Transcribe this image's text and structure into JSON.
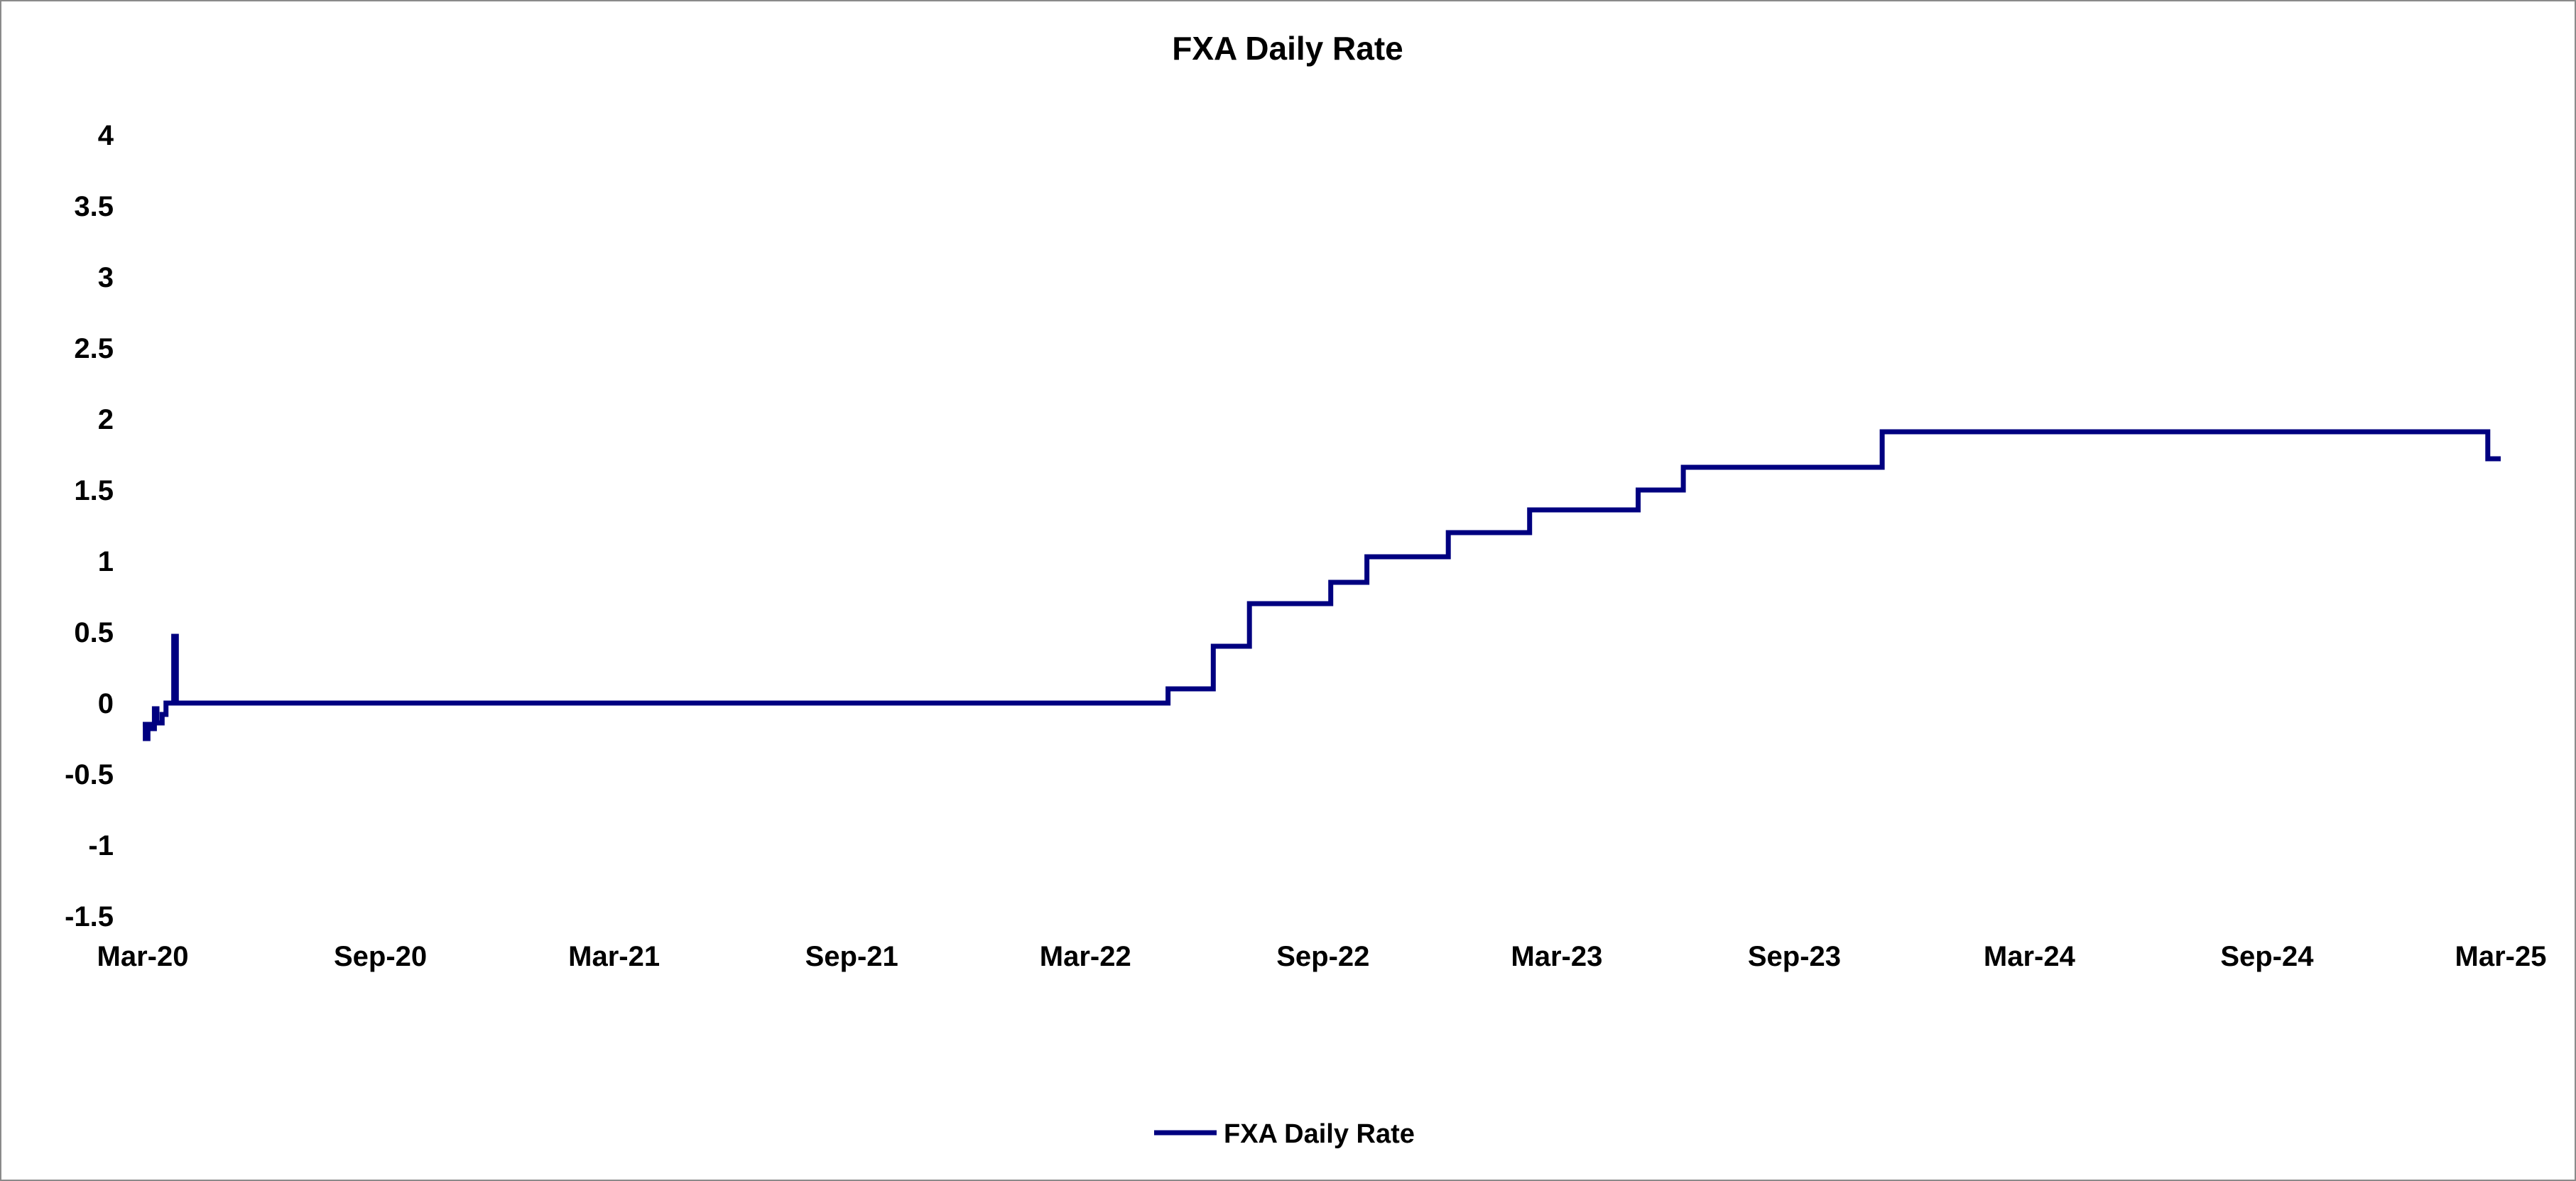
{
  "chart_data": {
    "type": "line",
    "title": "FXA Daily Rate",
    "xlabel": "",
    "ylabel": "",
    "ylim": [
      -1.5,
      4
    ],
    "y_ticks": [
      "4",
      "3.5",
      "3",
      "2.5",
      "2",
      "1.5",
      "1",
      "0.5",
      "0",
      "-0.5",
      "-1",
      "-1.5"
    ],
    "y_tick_values": [
      4,
      3.5,
      3,
      2.5,
      2,
      1.5,
      1,
      0.5,
      0,
      -0.5,
      -1,
      -1.5
    ],
    "xlim": [
      "2020-03-01",
      "2025-03-01"
    ],
    "x_ticks": [
      {
        "label": "Mar-20",
        "date": "2020-03-01"
      },
      {
        "label": "Sep-20",
        "date": "2020-09-01"
      },
      {
        "label": "Mar-21",
        "date": "2021-03-01"
      },
      {
        "label": "Sep-21",
        "date": "2021-09-01"
      },
      {
        "label": "Mar-22",
        "date": "2022-03-01"
      },
      {
        "label": "Sep-22",
        "date": "2022-09-01"
      },
      {
        "label": "Mar-23",
        "date": "2023-03-01"
      },
      {
        "label": "Sep-23",
        "date": "2023-09-01"
      },
      {
        "label": "Mar-24",
        "date": "2024-03-01"
      },
      {
        "label": "Sep-24",
        "date": "2024-09-01"
      },
      {
        "label": "Mar-25",
        "date": "2025-03-01"
      }
    ],
    "grid": false,
    "legend_position": "bottom-center",
    "series": [
      {
        "name": "FXA Daily Rate",
        "color": "#000080",
        "step": true,
        "points": [
          [
            "2020-03-01",
            -0.15
          ],
          [
            "2020-03-03",
            -0.25
          ],
          [
            "2020-03-05",
            -0.15
          ],
          [
            "2020-03-08",
            -0.18
          ],
          [
            "2020-03-10",
            -0.04
          ],
          [
            "2020-03-12",
            -0.14
          ],
          [
            "2020-03-16",
            -0.08
          ],
          [
            "2020-03-19",
            0.0
          ],
          [
            "2020-03-23",
            0.0
          ],
          [
            "2020-03-25",
            0.47
          ],
          [
            "2020-03-27",
            0.0
          ],
          [
            "2022-05-04",
            0.1
          ],
          [
            "2022-06-08",
            0.4
          ],
          [
            "2022-07-06",
            0.7
          ],
          [
            "2022-09-07",
            0.85
          ],
          [
            "2022-10-05",
            1.03
          ],
          [
            "2022-12-07",
            1.2
          ],
          [
            "2023-02-08",
            1.36
          ],
          [
            "2023-05-03",
            1.5
          ],
          [
            "2023-06-07",
            1.66
          ],
          [
            "2023-11-08",
            1.91
          ],
          [
            "2025-02-19",
            1.72
          ],
          [
            "2025-03-01",
            1.72
          ]
        ]
      }
    ]
  }
}
